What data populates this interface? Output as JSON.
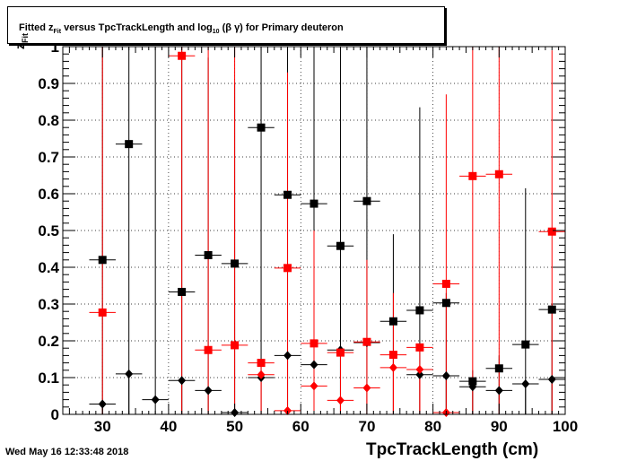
{
  "title": {
    "prefix": "Fitted  z",
    "sub1": "Fit",
    "mid": "  versus TpcTrackLength and log",
    "sub2": "10",
    "suffix": " (β γ) for Primary deuteron"
  },
  "timestamp": "Wed May 16 12:33:48 2018",
  "chart_data": {
    "type": "scatter",
    "title": "Fitted z_Fit versus TpcTrackLength and log10 (β γ) for Primary deuteron",
    "xlabel": "TpcTrackLength (cm)",
    "ylabel": "z_Fit",
    "xlim": [
      24,
      100
    ],
    "ylim": [
      0,
      1
    ],
    "grid": true,
    "x_ticks": [
      30,
      40,
      50,
      60,
      70,
      80,
      90,
      100
    ],
    "y_ticks": [
      0,
      0.1,
      0.2,
      0.3,
      0.4,
      0.5,
      0.6,
      0.7,
      0.8,
      0.9,
      1
    ],
    "y_tick_labels": [
      "0",
      "0.1",
      "0.2",
      "0.3",
      "0.4",
      "0.5",
      "0.6",
      "0.7",
      "0.8",
      "0.9",
      "1"
    ],
    "series": [
      {
        "color": "#000000",
        "marker": "square",
        "xerr": 2,
        "points": [
          {
            "x": 30,
            "y": 0.42,
            "ylo": 0.0,
            "yhi": 1.0
          },
          {
            "x": 34,
            "y": 0.735,
            "ylo": 0.0,
            "yhi": 1.0
          },
          {
            "x": 42,
            "y": 0.333,
            "ylo": 0.0,
            "yhi": 1.0
          },
          {
            "x": 46,
            "y": 0.433,
            "ylo": 0.0,
            "yhi": 0.97
          },
          {
            "x": 50,
            "y": 0.41,
            "ylo": 0.0,
            "yhi": 0.9
          },
          {
            "x": 54,
            "y": 0.78,
            "ylo": 0.0,
            "yhi": 1.0
          },
          {
            "x": 58,
            "y": 0.597,
            "ylo": 0.0,
            "yhi": 1.0
          },
          {
            "x": 62,
            "y": 0.573,
            "ylo": 0.0,
            "yhi": 1.0
          },
          {
            "x": 66,
            "y": 0.458,
            "ylo": 0.0,
            "yhi": 1.0
          },
          {
            "x": 70,
            "y": 0.58,
            "ylo": 0.0,
            "yhi": 1.0
          },
          {
            "x": 74,
            "y": 0.253,
            "ylo": 0.0,
            "yhi": 0.49
          },
          {
            "x": 78,
            "y": 0.283,
            "ylo": 0.0,
            "yhi": 0.835
          },
          {
            "x": 82,
            "y": 0.303,
            "ylo": 0.0,
            "yhi": 0.33
          },
          {
            "x": 86,
            "y": 0.09,
            "ylo": 0.0,
            "yhi": 0.12
          },
          {
            "x": 90,
            "y": 0.125,
            "ylo": 0.0,
            "yhi": 0.16
          },
          {
            "x": 94,
            "y": 0.19,
            "ylo": 0.0,
            "yhi": 0.615
          },
          {
            "x": 98,
            "y": 0.285,
            "ylo": 0.0,
            "yhi": 0.3
          }
        ]
      },
      {
        "color": "#000000",
        "marker": "diamond",
        "xerr": 2,
        "points": [
          {
            "x": 30,
            "y": 0.028,
            "ylo": 0.0,
            "yhi": 0.03
          },
          {
            "x": 34,
            "y": 0.11,
            "ylo": 0.0,
            "yhi": 0.115
          },
          {
            "x": 38,
            "y": 0.04,
            "ylo": 0.0,
            "yhi": 1.0
          },
          {
            "x": 42,
            "y": 0.092,
            "ylo": 0.0,
            "yhi": 0.1
          },
          {
            "x": 46,
            "y": 0.065,
            "ylo": 0.0,
            "yhi": 0.07
          },
          {
            "x": 50,
            "y": 0.005,
            "ylo": 0.0,
            "yhi": 0.01
          },
          {
            "x": 54,
            "y": 0.1,
            "ylo": 0.0,
            "yhi": 0.105
          },
          {
            "x": 58,
            "y": 0.16,
            "ylo": 0.0,
            "yhi": 0.165
          },
          {
            "x": 62,
            "y": 0.135,
            "ylo": 0.0,
            "yhi": 1.0
          },
          {
            "x": 66,
            "y": 0.175,
            "ylo": 0.0,
            "yhi": 0.18
          },
          {
            "x": 70,
            "y": 0.195,
            "ylo": 0.0,
            "yhi": 0.2
          },
          {
            "x": 78,
            "y": 0.108,
            "ylo": 0.0,
            "yhi": 0.115
          },
          {
            "x": 82,
            "y": 0.105,
            "ylo": 0.0,
            "yhi": 0.11
          },
          {
            "x": 86,
            "y": 0.075,
            "ylo": 0.0,
            "yhi": 0.08
          },
          {
            "x": 90,
            "y": 0.065,
            "ylo": 0.0,
            "yhi": 0.07
          },
          {
            "x": 94,
            "y": 0.083,
            "ylo": 0.0,
            "yhi": 0.09
          },
          {
            "x": 98,
            "y": 0.095,
            "ylo": 0.0,
            "yhi": 0.1
          }
        ]
      },
      {
        "color": "#ff0000",
        "marker": "square",
        "xerr": 2,
        "points": [
          {
            "x": 30,
            "y": 0.277,
            "ylo": 0.0,
            "yhi": 1.0
          },
          {
            "x": 42,
            "y": 0.975,
            "ylo": 0.0,
            "yhi": 1.0
          },
          {
            "x": 46,
            "y": 0.175,
            "ylo": 0.0,
            "yhi": 1.0
          },
          {
            "x": 50,
            "y": 0.188,
            "ylo": 0.0,
            "yhi": 1.0
          },
          {
            "x": 54,
            "y": 0.14,
            "ylo": 0.0,
            "yhi": 0.15
          },
          {
            "x": 58,
            "y": 0.398,
            "ylo": 0.0,
            "yhi": 0.93
          },
          {
            "x": 62,
            "y": 0.193,
            "ylo": 0.0,
            "yhi": 0.2
          },
          {
            "x": 66,
            "y": 0.168,
            "ylo": 0.0,
            "yhi": 0.17
          },
          {
            "x": 70,
            "y": 0.197,
            "ylo": 0.0,
            "yhi": 0.42
          },
          {
            "x": 74,
            "y": 0.162,
            "ylo": 0.0,
            "yhi": 0.165
          },
          {
            "x": 78,
            "y": 0.182,
            "ylo": 0.0,
            "yhi": 0.185
          },
          {
            "x": 82,
            "y": 0.355,
            "ylo": 0.0,
            "yhi": 0.87
          },
          {
            "x": 86,
            "y": 0.648,
            "ylo": 0.0,
            "yhi": 1.0
          },
          {
            "x": 90,
            "y": 0.653,
            "ylo": 0.0,
            "yhi": 1.0
          },
          {
            "x": 98,
            "y": 0.497,
            "ylo": 0.0,
            "yhi": 0.99
          }
        ]
      },
      {
        "color": "#ff0000",
        "marker": "diamond",
        "xerr": 2,
        "points": [
          {
            "x": 54,
            "y": 0.108,
            "ylo": 0.0,
            "yhi": 0.11
          },
          {
            "x": 58,
            "y": 0.01,
            "ylo": 0.0,
            "yhi": 0.015
          },
          {
            "x": 62,
            "y": 0.077,
            "ylo": 0.0,
            "yhi": 0.5
          },
          {
            "x": 66,
            "y": 0.038,
            "ylo": 0.0,
            "yhi": 0.04
          },
          {
            "x": 70,
            "y": 0.072,
            "ylo": 0.0,
            "yhi": 0.075
          },
          {
            "x": 74,
            "y": 0.127,
            "ylo": 0.0,
            "yhi": 0.33
          },
          {
            "x": 78,
            "y": 0.122,
            "ylo": 0.0,
            "yhi": 0.125
          },
          {
            "x": 82,
            "y": 0.005,
            "ylo": 0.0,
            "yhi": 0.01
          }
        ]
      }
    ]
  }
}
